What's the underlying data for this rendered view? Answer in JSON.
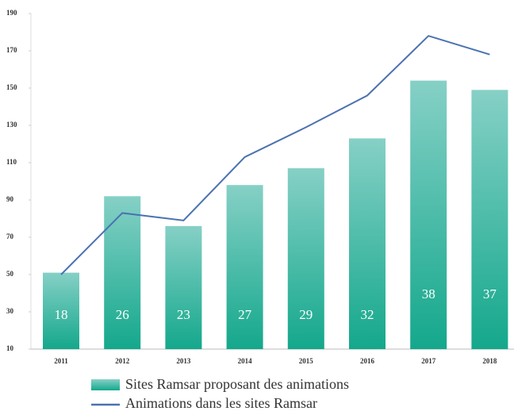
{
  "chart_data": {
    "type": "bar_line",
    "categories": [
      "2011",
      "2012",
      "2013",
      "2014",
      "2015",
      "2016",
      "2017",
      "2018"
    ],
    "series": [
      {
        "name": "Sites Ramsar proposant des animations",
        "type": "bar",
        "color": "#2fb39a",
        "values": [
          51,
          92,
          76,
          98,
          107,
          123,
          154,
          149
        ]
      },
      {
        "name": "Animations dans les sites Ramsar",
        "type": "line",
        "color": "#4a72b0",
        "values": [
          50,
          83,
          79,
          113,
          129,
          146,
          178,
          168
        ]
      }
    ],
    "bar_texts": [
      "18",
      "26",
      "23",
      "27",
      "29",
      "32",
      "38",
      "37"
    ],
    "ylim": [
      10,
      190
    ],
    "yticks": [
      10,
      30,
      50,
      70,
      90,
      110,
      130,
      150,
      170,
      190
    ]
  }
}
